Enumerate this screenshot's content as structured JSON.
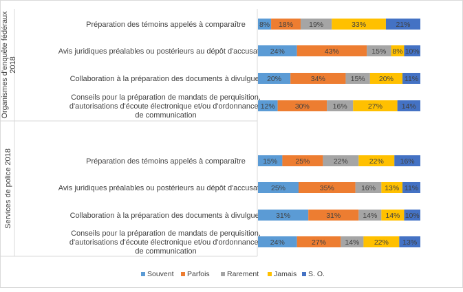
{
  "chart_data": {
    "type": "bar",
    "orientation": "horizontal",
    "stacked": "100%",
    "groups": [
      {
        "label": "Organismes d'enquête fédéraux 2018",
        "categories": [
          "Préparation des témoins appelés à comparaître",
          "Avis juridiques préalables ou postérieurs au dépôt d'accusations",
          "Collaboration à la préparation des documents à divulguer",
          "Conseils pour la préparation de mandats de perquisition, d'autorisations d'écoute électronique et/ou d'ordonnances de communication"
        ],
        "values": [
          [
            8,
            18,
            19,
            33,
            21
          ],
          [
            24,
            43,
            15,
            8,
            10
          ],
          [
            20,
            34,
            15,
            20,
            11
          ],
          [
            12,
            30,
            16,
            27,
            14
          ]
        ]
      },
      {
        "label": "Services de police 2018",
        "categories": [
          "Préparation des témoins appelés à comparaître",
          "Avis juridiques préalables ou postérieurs au dépôt d'accusations",
          "Collaboration à la préparation des documents à divulguer",
          "Conseils pour la préparation de mandats de perquisition, d'autorisations d'écoute électronique et/ou d'ordonnances de communication"
        ],
        "values": [
          [
            15,
            25,
            22,
            22,
            16
          ],
          [
            25,
            35,
            16,
            13,
            11
          ],
          [
            31,
            31,
            14,
            14,
            10
          ],
          [
            24,
            27,
            14,
            22,
            13
          ]
        ]
      }
    ],
    "series": [
      {
        "name": "Souvent",
        "color": "#5b9bd5"
      },
      {
        "name": "Parfois",
        "color": "#ed7d31"
      },
      {
        "name": "Rarement",
        "color": "#a5a5a5"
      },
      {
        "name": "Jamais",
        "color": "#ffc000"
      },
      {
        "name": "S. O.",
        "color": "#4472c4"
      }
    ],
    "data_label_suffix": "%",
    "legend_position": "bottom",
    "grid": false
  }
}
